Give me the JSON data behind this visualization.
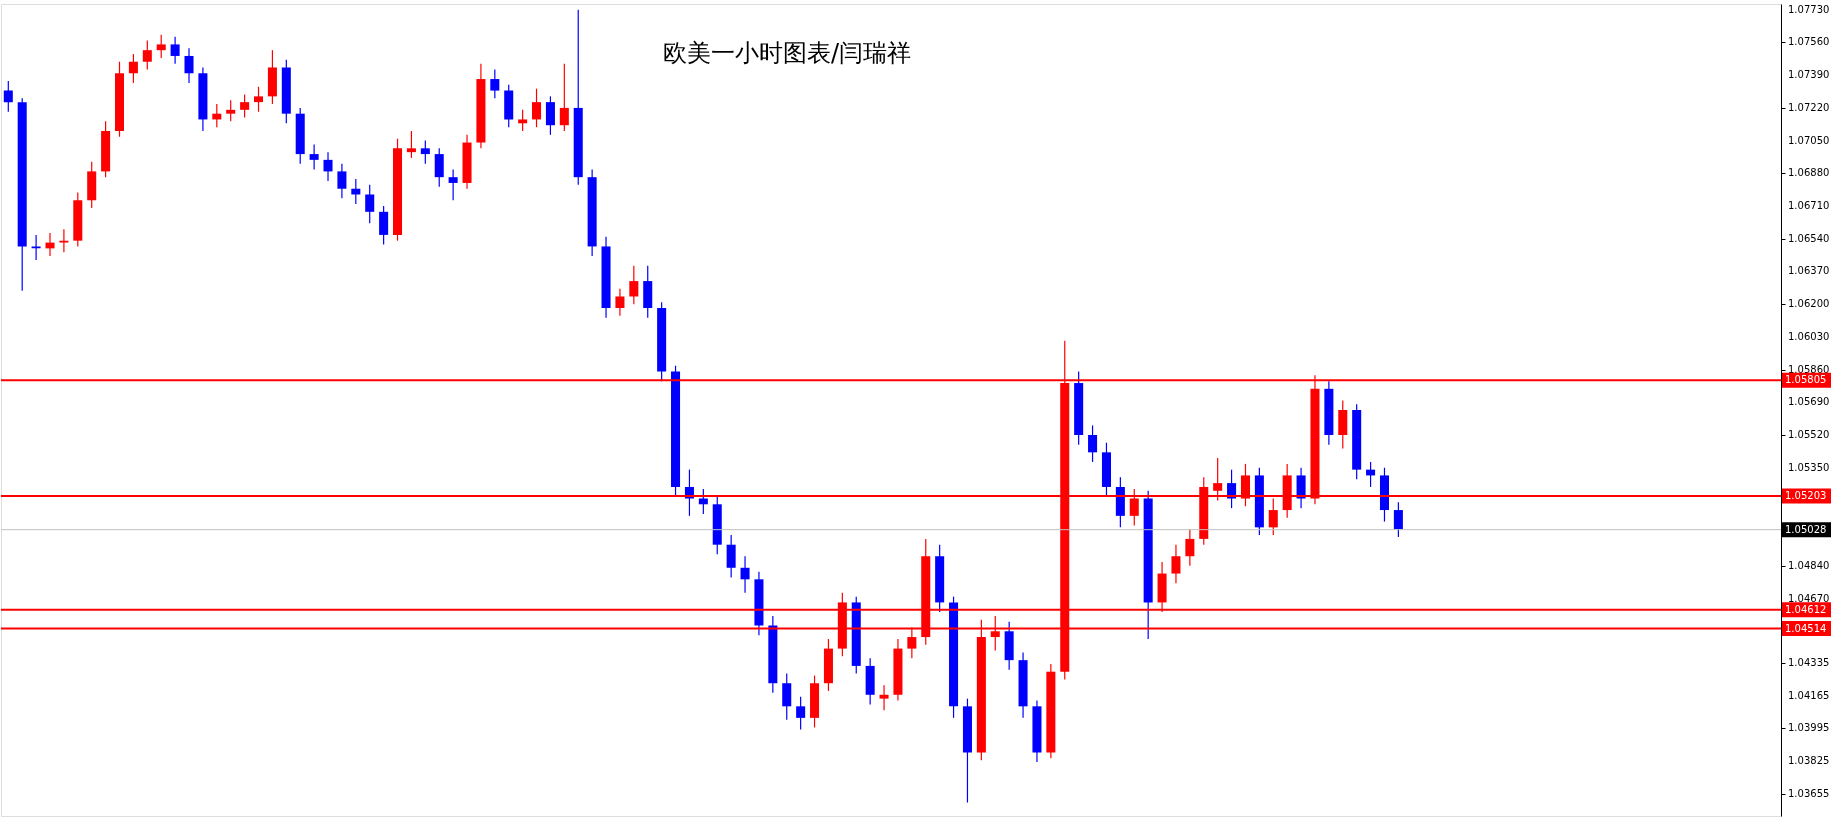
{
  "chart_data": {
    "type": "candlestick",
    "title": "欧美一小时图表/闫瑞祥",
    "categories": [
      null,
      null,
      null,
      null,
      null,
      null,
      null,
      null,
      null,
      null,
      null,
      null,
      null,
      null,
      null,
      null,
      null,
      null,
      null,
      null,
      null,
      null,
      null,
      null,
      null,
      null,
      null,
      null,
      null,
      null,
      null,
      null,
      null,
      null,
      null,
      null,
      null,
      null,
      null,
      null,
      null,
      null,
      null,
      null,
      null,
      null,
      null,
      null,
      null,
      null,
      null,
      null,
      null,
      null,
      null,
      null,
      null,
      null,
      null,
      null,
      null,
      null,
      null,
      null,
      null,
      null,
      null,
      null,
      null,
      null,
      null,
      null,
      null,
      null,
      null,
      null,
      null,
      null,
      null,
      null,
      null,
      null,
      null,
      null,
      null,
      null,
      null,
      null,
      null,
      null,
      null,
      null,
      null,
      null,
      null,
      null,
      null,
      null,
      null,
      null,
      null,
      null,
      null,
      null,
      null,
      null,
      null,
      null,
      null,
      null,
      null,
      null,
      null,
      null,
      null,
      null,
      null,
      null,
      null,
      null,
      null,
      null,
      null,
      null,
      null,
      null,
      null,
      null
    ],
    "colors": [
      "#0000ff",
      "#0000ff",
      "#0000ff",
      "#ff0000",
      "#ff0000",
      "#ff0000",
      "#ff0000",
      "#ff0000",
      "#ff0000",
      "#ff0000",
      "#ff0000",
      "#ff0000",
      "#0000ff",
      "#0000ff",
      "#0000ff",
      "#ff0000",
      "#ff0000",
      "#ff0000",
      "#ff0000",
      "#ff0000",
      "#0000ff",
      "#0000ff",
      "#0000ff",
      "#0000ff",
      "#0000ff",
      "#0000ff",
      "#0000ff",
      "#0000ff",
      "#ff0000",
      "#ff0000",
      "#0000ff",
      "#0000ff",
      "#0000ff",
      "#ff0000",
      "#ff0000",
      "#0000ff",
      "#0000ff",
      "#ff0000",
      "#ff0000",
      "#0000ff",
      "#ff0000",
      "#0000ff",
      "#0000ff",
      "#0000ff",
      "#ff0000",
      "#ff0000",
      "#0000ff",
      "#0000ff",
      "#0000ff",
      "#0000ff",
      "#0000ff",
      "#0000ff",
      "#0000ff",
      "#0000ff",
      "#0000ff",
      "#0000ff",
      "#0000ff",
      "#0000ff",
      "#ff0000",
      "#ff0000",
      "#ff0000",
      "#0000ff",
      "#0000ff",
      "#ff0000",
      "#ff0000",
      "#ff0000",
      "#ff0000",
      "#0000ff",
      "#0000ff",
      "#0000ff",
      "#ff0000",
      "#ff0000",
      "#0000ff",
      "#0000ff",
      "#0000ff",
      "#ff0000",
      "#ff0000",
      "#0000ff",
      "#0000ff",
      "#0000ff",
      "#0000ff",
      "#ff0000",
      "#0000ff",
      "#ff0000",
      "#ff0000",
      "#ff0000",
      "#ff0000",
      "#ff0000",
      "#0000ff",
      "#ff0000",
      "#0000ff",
      "#ff0000",
      "#ff0000",
      "#0000ff",
      "#ff0000",
      "#0000ff",
      "#ff0000",
      "#0000ff",
      "#0000ff",
      "#0000ff",
      "#0000ff",
      null,
      null,
      null,
      null,
      null,
      null,
      null,
      null,
      null,
      null,
      null,
      null,
      null,
      null,
      null,
      null,
      null,
      null,
      null,
      null,
      null,
      null,
      null,
      null,
      null,
      null,
      null
    ],
    "ohlc": [
      [
        1.0731,
        1.0736,
        1.072,
        1.0725
      ],
      [
        1.0725,
        1.0727,
        1.0627,
        1.065
      ],
      [
        1.065,
        1.0656,
        1.0643,
        1.0649
      ],
      [
        1.0649,
        1.0657,
        1.0645,
        1.0652
      ],
      [
        1.0652,
        1.0659,
        1.0647,
        1.0653
      ],
      [
        1.0653,
        1.0678,
        1.065,
        1.0674
      ],
      [
        1.0674,
        1.0694,
        1.067,
        1.0689
      ],
      [
        1.0689,
        1.0715,
        1.0686,
        1.071
      ],
      [
        1.071,
        1.0746,
        1.0707,
        1.074
      ],
      [
        1.074,
        1.075,
        1.0735,
        1.0746
      ],
      [
        1.0746,
        1.0757,
        1.0742,
        1.0752
      ],
      [
        1.0752,
        1.076,
        1.0748,
        1.0755
      ],
      [
        1.0755,
        1.0759,
        1.0745,
        1.0749
      ],
      [
        1.0749,
        1.0753,
        1.0735,
        1.074
      ],
      [
        1.074,
        1.0743,
        1.071,
        1.0716
      ],
      [
        1.0716,
        1.0724,
        1.0712,
        1.0719
      ],
      [
        1.0719,
        1.0726,
        1.0715,
        1.0721
      ],
      [
        1.0721,
        1.0729,
        1.0717,
        1.0725
      ],
      [
        1.0725,
        1.0733,
        1.072,
        1.0728
      ],
      [
        1.0728,
        1.0752,
        1.0724,
        1.0743
      ],
      [
        1.0743,
        1.0747,
        1.0714,
        1.0719
      ],
      [
        1.0719,
        1.0722,
        1.0693,
        1.0698
      ],
      [
        1.0698,
        1.0703,
        1.069,
        1.0695
      ],
      [
        1.0695,
        1.0699,
        1.0684,
        1.0689
      ],
      [
        1.0689,
        1.0693,
        1.0675,
        1.068
      ],
      [
        1.068,
        1.0685,
        1.0672,
        1.0677
      ],
      [
        1.0677,
        1.0682,
        1.0662,
        1.0668
      ],
      [
        1.0668,
        1.0671,
        1.0651,
        1.0656
      ],
      [
        1.0656,
        1.0706,
        1.0653,
        1.0701
      ],
      [
        1.0699,
        1.071,
        1.0696,
        1.0701
      ],
      [
        1.0701,
        1.0705,
        1.0693,
        1.0698
      ],
      [
        1.0698,
        1.0701,
        1.0681,
        1.0686
      ],
      [
        1.0686,
        1.069,
        1.0674,
        1.0683
      ],
      [
        1.0683,
        1.0708,
        1.068,
        1.0704
      ],
      [
        1.0704,
        1.0745,
        1.0701,
        1.0737
      ],
      [
        1.0737,
        1.0742,
        1.0727,
        1.0731
      ],
      [
        1.0731,
        1.0734,
        1.0712,
        1.0716
      ],
      [
        1.0714,
        1.0721,
        1.071,
        1.0716
      ],
      [
        1.0716,
        1.0732,
        1.0712,
        1.0725
      ],
      [
        1.0725,
        1.0728,
        1.0708,
        1.0713
      ],
      [
        1.0713,
        1.0745,
        1.071,
        1.0722
      ],
      [
        1.0722,
        1.0773,
        1.0682,
        1.0686
      ],
      [
        1.0686,
        1.069,
        1.0645,
        1.065
      ],
      [
        1.065,
        1.0655,
        1.0613,
        1.0618
      ],
      [
        1.0618,
        1.0628,
        1.0614,
        1.0624
      ],
      [
        1.0624,
        1.064,
        1.062,
        1.0632
      ],
      [
        1.0632,
        1.064,
        1.0613,
        1.0618
      ],
      [
        1.0618,
        1.0621,
        1.058,
        1.0585
      ],
      [
        1.0585,
        1.0588,
        1.052,
        1.0525
      ],
      [
        1.0525,
        1.0534,
        1.051,
        1.0519
      ],
      [
        1.0519,
        1.0524,
        1.0511,
        1.0516
      ],
      [
        1.0516,
        1.052,
        1.049,
        1.0495
      ],
      [
        1.0495,
        1.05,
        1.0478,
        1.0483
      ],
      [
        1.0483,
        1.0489,
        1.047,
        1.0477
      ],
      [
        1.0477,
        1.0481,
        1.0448,
        1.0453
      ],
      [
        1.0453,
        1.0458,
        1.0418,
        1.0423
      ],
      [
        1.0423,
        1.0428,
        1.0404,
        1.0411
      ],
      [
        1.0411,
        1.0416,
        1.0399,
        1.0405
      ],
      [
        1.0405,
        1.0427,
        1.04,
        1.0423
      ],
      [
        1.0423,
        1.0446,
        1.0419,
        1.0441
      ],
      [
        1.0441,
        1.047,
        1.0437,
        1.0465
      ],
      [
        1.0465,
        1.0468,
        1.0428,
        1.0432
      ],
      [
        1.0432,
        1.0436,
        1.0412,
        1.0417
      ],
      [
        1.0415,
        1.0422,
        1.0409,
        1.0417
      ],
      [
        1.0417,
        1.0446,
        1.0414,
        1.0441
      ],
      [
        1.0441,
        1.0452,
        1.0436,
        1.0447
      ],
      [
        1.0447,
        1.0498,
        1.0443,
        1.0489
      ],
      [
        1.0489,
        1.0495,
        1.046,
        1.0465
      ],
      [
        1.0465,
        1.0468,
        1.0405,
        1.0411
      ],
      [
        1.0411,
        1.0415,
        1.0361,
        1.0387
      ],
      [
        1.0387,
        1.0456,
        1.0383,
        1.0447
      ],
      [
        1.0447,
        1.0458,
        1.044,
        1.045
      ],
      [
        1.045,
        1.0455,
        1.043,
        1.0435
      ],
      [
        1.0435,
        1.0439,
        1.0405,
        1.0411
      ],
      [
        1.0411,
        1.0414,
        1.0382,
        1.0387
      ],
      [
        1.0387,
        1.0433,
        1.0384,
        1.0429
      ],
      [
        1.0429,
        1.0601,
        1.0425,
        1.0579
      ],
      [
        1.0579,
        1.0585,
        1.0547,
        1.0552
      ],
      [
        1.0552,
        1.0557,
        1.0538,
        1.0543
      ],
      [
        1.0543,
        1.0548,
        1.052,
        1.0525
      ],
      [
        1.0525,
        1.053,
        1.0504,
        1.051
      ],
      [
        1.051,
        1.0524,
        1.0505,
        1.0519
      ],
      [
        1.0519,
        1.0523,
        1.0446,
        1.0465
      ],
      [
        1.0465,
        1.0486,
        1.046,
        1.048
      ],
      [
        1.048,
        1.0495,
        1.0475,
        1.0489
      ],
      [
        1.0489,
        1.0503,
        1.0484,
        1.0498
      ],
      [
        1.0498,
        1.053,
        1.0495,
        1.0525
      ],
      [
        1.0523,
        1.054,
        1.0518,
        1.0527
      ],
      [
        1.0527,
        1.0534,
        1.0514,
        1.0519
      ],
      [
        1.0519,
        1.0537,
        1.0515,
        1.0531
      ],
      [
        1.0531,
        1.0535,
        1.05,
        1.0504
      ],
      [
        1.0504,
        1.0519,
        1.05,
        1.0513
      ],
      [
        1.0513,
        1.0537,
        1.0509,
        1.0531
      ],
      [
        1.0531,
        1.0535,
        1.0514,
        1.0519
      ],
      [
        1.0519,
        1.0583,
        1.0516,
        1.0576
      ],
      [
        1.0576,
        1.058,
        1.0547,
        1.0552
      ],
      [
        1.0552,
        1.057,
        1.0545,
        1.0565
      ],
      [
        1.0565,
        1.0568,
        1.0529,
        1.0534
      ],
      [
        1.0534,
        1.0538,
        1.0525,
        1.0531
      ],
      [
        1.0531,
        1.0535,
        1.0507,
        1.0513
      ],
      [
        1.0513,
        1.0517,
        1.0499,
        1.0503
      ],
      null,
      null,
      null,
      null,
      null,
      null,
      null,
      null,
      null,
      null,
      null,
      null,
      null,
      null,
      null,
      null,
      null,
      null,
      null,
      null,
      null,
      null,
      null,
      null,
      null,
      null,
      null
    ],
    "ylim": [
      1.0354,
      1.0776
    ],
    "yticks": [
      {
        "value": 1.0773,
        "label": "1.07730"
      },
      {
        "value": 1.0756,
        "label": "1.07560"
      },
      {
        "value": 1.0739,
        "label": "1.07390"
      },
      {
        "value": 1.0722,
        "label": "1.07220"
      },
      {
        "value": 1.0705,
        "label": "1.07050"
      },
      {
        "value": 1.0688,
        "label": "1.06880"
      },
      {
        "value": 1.0671,
        "label": "1.06710"
      },
      {
        "value": 1.0654,
        "label": "1.06540"
      },
      {
        "value": 1.0637,
        "label": "1.06370"
      },
      {
        "value": 1.062,
        "label": "1.06200"
      },
      {
        "value": 1.0603,
        "label": "1.06030"
      },
      {
        "value": 1.0586,
        "label": "1.05860"
      },
      {
        "value": 1.0569,
        "label": "1.05690"
      },
      {
        "value": 1.0552,
        "label": "1.05520"
      },
      {
        "value": 1.0535,
        "label": "1.05350"
      },
      {
        "value": 1.0484,
        "label": "1.04840"
      },
      {
        "value": 1.0467,
        "label": "1.04670"
      },
      {
        "value": 1.04335,
        "label": "1.04335"
      },
      {
        "value": 1.04165,
        "label": "1.04165"
      },
      {
        "value": 1.03995,
        "label": "1.03995"
      },
      {
        "value": 1.03825,
        "label": "1.03825"
      },
      {
        "value": 1.03655,
        "label": "1.03655"
      }
    ],
    "ref_lines": [
      {
        "axis": "y",
        "value": 1.05805,
        "label": "1.05805",
        "color": "#ff0000"
      },
      {
        "axis": "y",
        "value": 1.05203,
        "label": "1.05203",
        "color": "#ff0000"
      },
      {
        "axis": "y",
        "value": 1.05028,
        "label": "1.05028",
        "color": "#c0c0c0"
      },
      {
        "axis": "y",
        "value": 1.04612,
        "label": "1.04612",
        "color": "#ff0000"
      },
      {
        "axis": "y",
        "value": 1.04514,
        "label": "1.04514",
        "color": "#ff0000"
      }
    ],
    "tick_labels": "y",
    "grid": false
  }
}
